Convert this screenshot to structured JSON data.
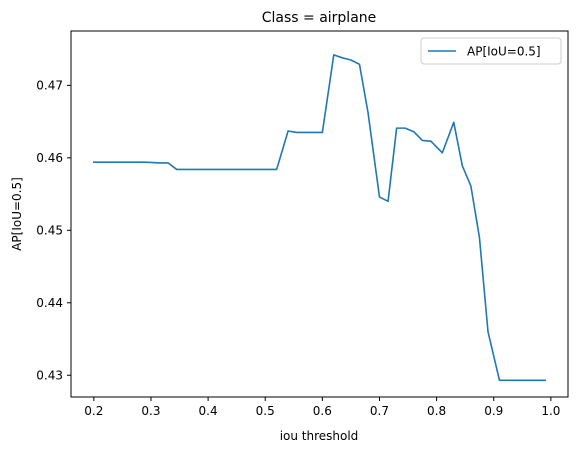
{
  "chart_data": {
    "type": "line",
    "title": "Class = airplane",
    "xlabel": "iou threshold",
    "ylabel": "AP[IoU=0.5]",
    "xlim": [
      0.16,
      1.03
    ],
    "ylim": [
      0.427,
      0.4775
    ],
    "xticks": [
      0.2,
      0.3,
      0.4,
      0.5,
      0.6,
      0.7,
      0.8,
      0.9,
      1.0
    ],
    "xtick_labels": [
      "0.2",
      "0.3",
      "0.4",
      "0.5",
      "0.6",
      "0.7",
      "0.8",
      "0.9",
      "1.0"
    ],
    "yticks": [
      0.43,
      0.44,
      0.45,
      0.46,
      0.47
    ],
    "ytick_labels": [
      "0.43",
      "0.44",
      "0.45",
      "0.46",
      "0.47"
    ],
    "grid": false,
    "legend_position": "top-right",
    "series": [
      {
        "name": "AP[IoU=0.5]",
        "color": "#1f77b4",
        "x": [
          0.2,
          0.29,
          0.315,
          0.33,
          0.345,
          0.52,
          0.54,
          0.555,
          0.6,
          0.62,
          0.635,
          0.65,
          0.665,
          0.68,
          0.7,
          0.715,
          0.73,
          0.745,
          0.76,
          0.775,
          0.79,
          0.81,
          0.83,
          0.845,
          0.86,
          0.875,
          0.89,
          0.91,
          0.99
        ],
        "y": [
          0.4594,
          0.4594,
          0.4593,
          0.4593,
          0.4584,
          0.4584,
          0.4637,
          0.4635,
          0.4635,
          0.4742,
          0.4738,
          0.4735,
          0.4729,
          0.4662,
          0.4546,
          0.454,
          0.4641,
          0.4641,
          0.4636,
          0.4624,
          0.4623,
          0.4607,
          0.4649,
          0.4589,
          0.4561,
          0.449,
          0.436,
          0.4293,
          0.4293
        ]
      }
    ]
  }
}
